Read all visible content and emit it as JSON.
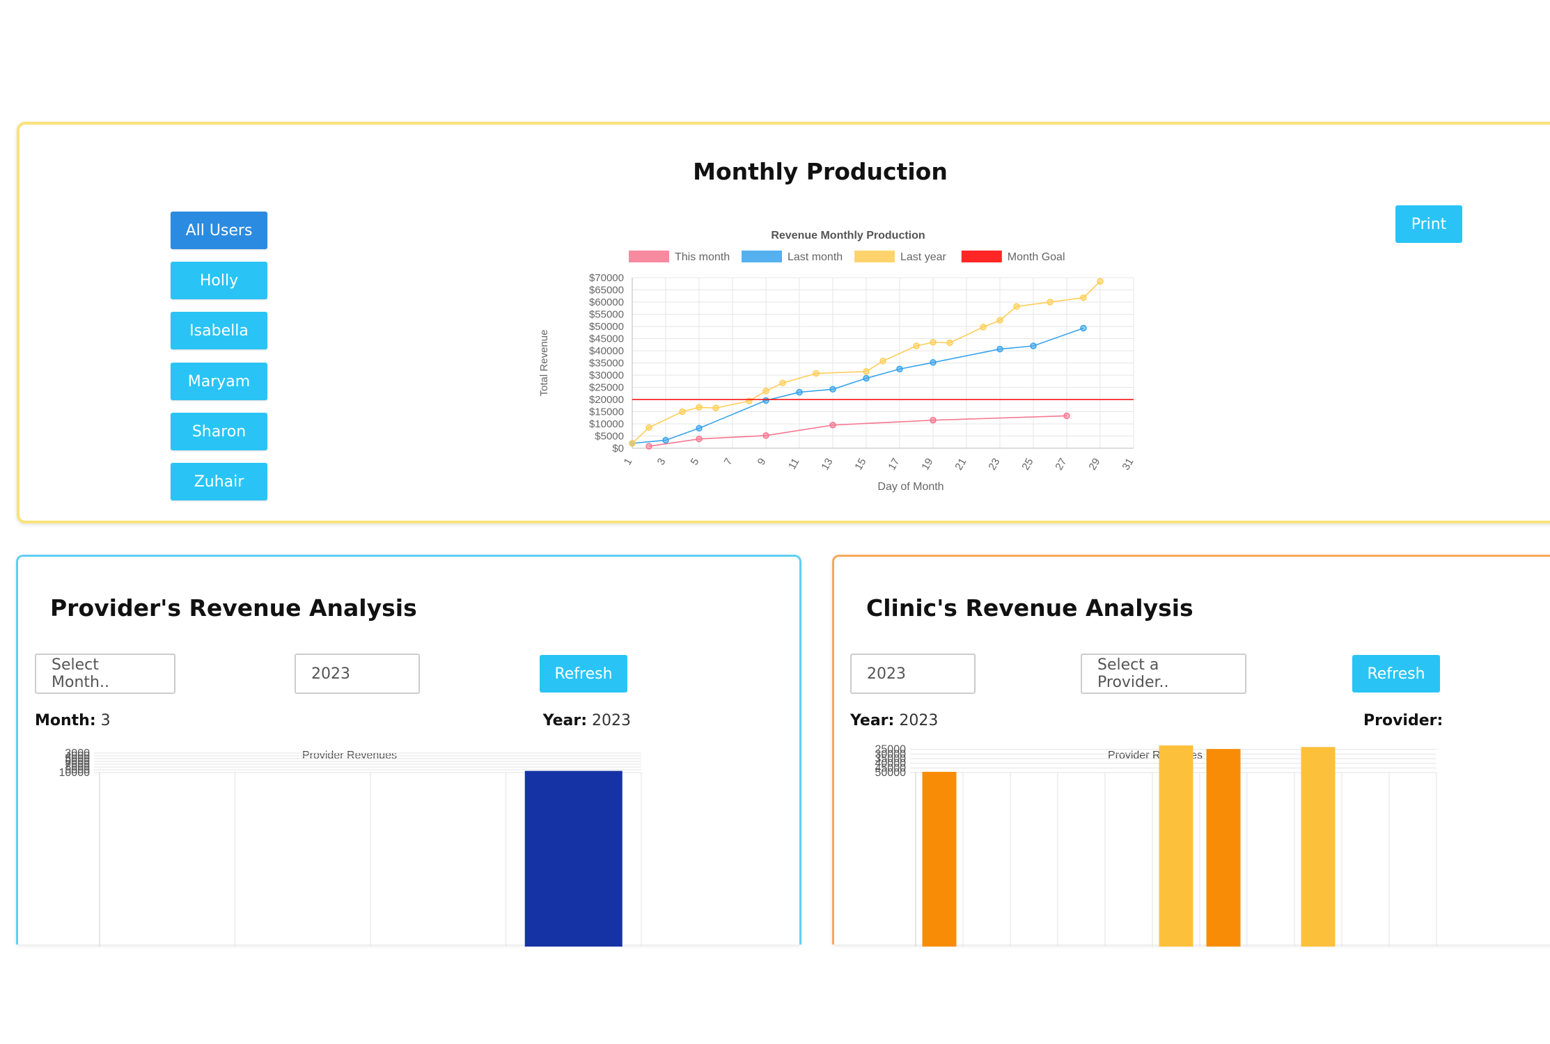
{
  "monthly": {
    "title": "Monthly Production",
    "users": [
      "All Users",
      "Holly",
      "Isabella",
      "Maryam",
      "Sharon",
      "Zuhair"
    ],
    "active_user": "All Users",
    "print_label": "Print"
  },
  "provider": {
    "title": "Provider's Revenue Analysis",
    "month_placeholder": "Select Month..",
    "year_value": "2023",
    "refresh_label": "Refresh",
    "month_label": "Month:",
    "month_value": "3",
    "year_label": "Year:",
    "year_display": "2023"
  },
  "clinic": {
    "title": "Clinic's Revenue Analysis",
    "year_value": "2023",
    "provider_placeholder": "Select a Provider..",
    "refresh_label": "Refresh",
    "year_label": "Year:",
    "year_display": "2023",
    "provider_label": "Provider:",
    "provider_display": ""
  },
  "chart_data": [
    {
      "id": "monthly",
      "type": "line",
      "title": "Revenue Monthly Production",
      "xlabel": "Day of Month",
      "ylabel": "Total Revenue",
      "ylim": [
        0,
        70000
      ],
      "xlim": [
        1,
        31
      ],
      "yticks": [
        0,
        5000,
        10000,
        15000,
        20000,
        25000,
        30000,
        35000,
        40000,
        45000,
        50000,
        55000,
        60000,
        65000,
        70000
      ],
      "ytick_labels": [
        "$0",
        "$5000",
        "$10000",
        "$15000",
        "$20000",
        "$25000",
        "$30000",
        "$35000",
        "$40000",
        "$45000",
        "$50000",
        "$55000",
        "$60000",
        "$65000",
        "$70000"
      ],
      "xticks": [
        1,
        3,
        5,
        7,
        9,
        11,
        13,
        15,
        17,
        19,
        21,
        23,
        25,
        27,
        29,
        31
      ],
      "grid": true,
      "legend_position": "top",
      "series": [
        {
          "name": "This month",
          "color": "#f7758f",
          "points": [
            [
              2,
              800
            ],
            [
              5,
              3800
            ],
            [
              9,
              5200
            ],
            [
              13,
              9500
            ],
            [
              19,
              11500
            ],
            [
              27,
              13300
            ]
          ]
        },
        {
          "name": "Last month",
          "color": "#36a2eb",
          "points": [
            [
              1,
              2000
            ],
            [
              3,
              3300
            ],
            [
              5,
              8200
            ],
            [
              9,
              19600
            ],
            [
              11,
              23000
            ],
            [
              13,
              24200
            ],
            [
              15,
              28700
            ],
            [
              17,
              32500
            ],
            [
              19,
              35200
            ],
            [
              23,
              40700
            ],
            [
              25,
              42000
            ],
            [
              28,
              49300
            ]
          ]
        },
        {
          "name": "Last year",
          "color": "#ffcd56",
          "points": [
            [
              1,
              2000
            ],
            [
              2,
              8500
            ],
            [
              4,
              15000
            ],
            [
              5,
              16800
            ],
            [
              6,
              16500
            ],
            [
              8,
              19400
            ],
            [
              9,
              23500
            ],
            [
              10,
              26800
            ],
            [
              12,
              30700
            ],
            [
              15,
              31500
            ],
            [
              16,
              35800
            ],
            [
              18,
              42000
            ],
            [
              19,
              43500
            ],
            [
              20,
              43300
            ],
            [
              22,
              49700
            ],
            [
              23,
              52500
            ],
            [
              24,
              58200
            ],
            [
              26,
              60000
            ],
            [
              28,
              61800
            ],
            [
              29,
              68500
            ]
          ]
        },
        {
          "name": "Month Goal",
          "color": "#ff0000",
          "points": [
            [
              1,
              20000
            ],
            [
              31,
              20000
            ]
          ],
          "no_markers": true
        }
      ]
    },
    {
      "id": "provider",
      "type": "bar",
      "title": "Provider Revenues",
      "ylim": [
        0,
        10000
      ],
      "yticks": [
        3000,
        4000,
        5000,
        6000,
        7000,
        8000,
        9000,
        10000
      ],
      "categories": [
        "",
        "",
        "",
        ""
      ],
      "values": [
        null,
        null,
        null,
        9400
      ],
      "colors": [
        "#1533a5",
        "#1533a5",
        "#1533a5",
        "#1533a5"
      ],
      "grid": true
    },
    {
      "id": "clinic",
      "type": "bar",
      "title": "Provider Revenues",
      "ylim": [
        20000,
        50000
      ],
      "yticks": [
        25000,
        30000,
        35000,
        40000,
        45000,
        50000
      ],
      "categories": [
        "",
        "",
        "",
        "",
        "",
        "",
        "",
        "",
        "",
        "",
        ""
      ],
      "values": [
        49200,
        null,
        null,
        null,
        null,
        20800,
        24600,
        null,
        22500,
        null,
        null
      ],
      "colors": [
        "#f98c07",
        "#f98c07",
        "#f98c07",
        "#f98c07",
        "#f98c07",
        "#fdc03a",
        "#f98c07",
        "#f98c07",
        "#fdc03a",
        "#f98c07",
        "#f98c07"
      ],
      "grid": true
    }
  ]
}
